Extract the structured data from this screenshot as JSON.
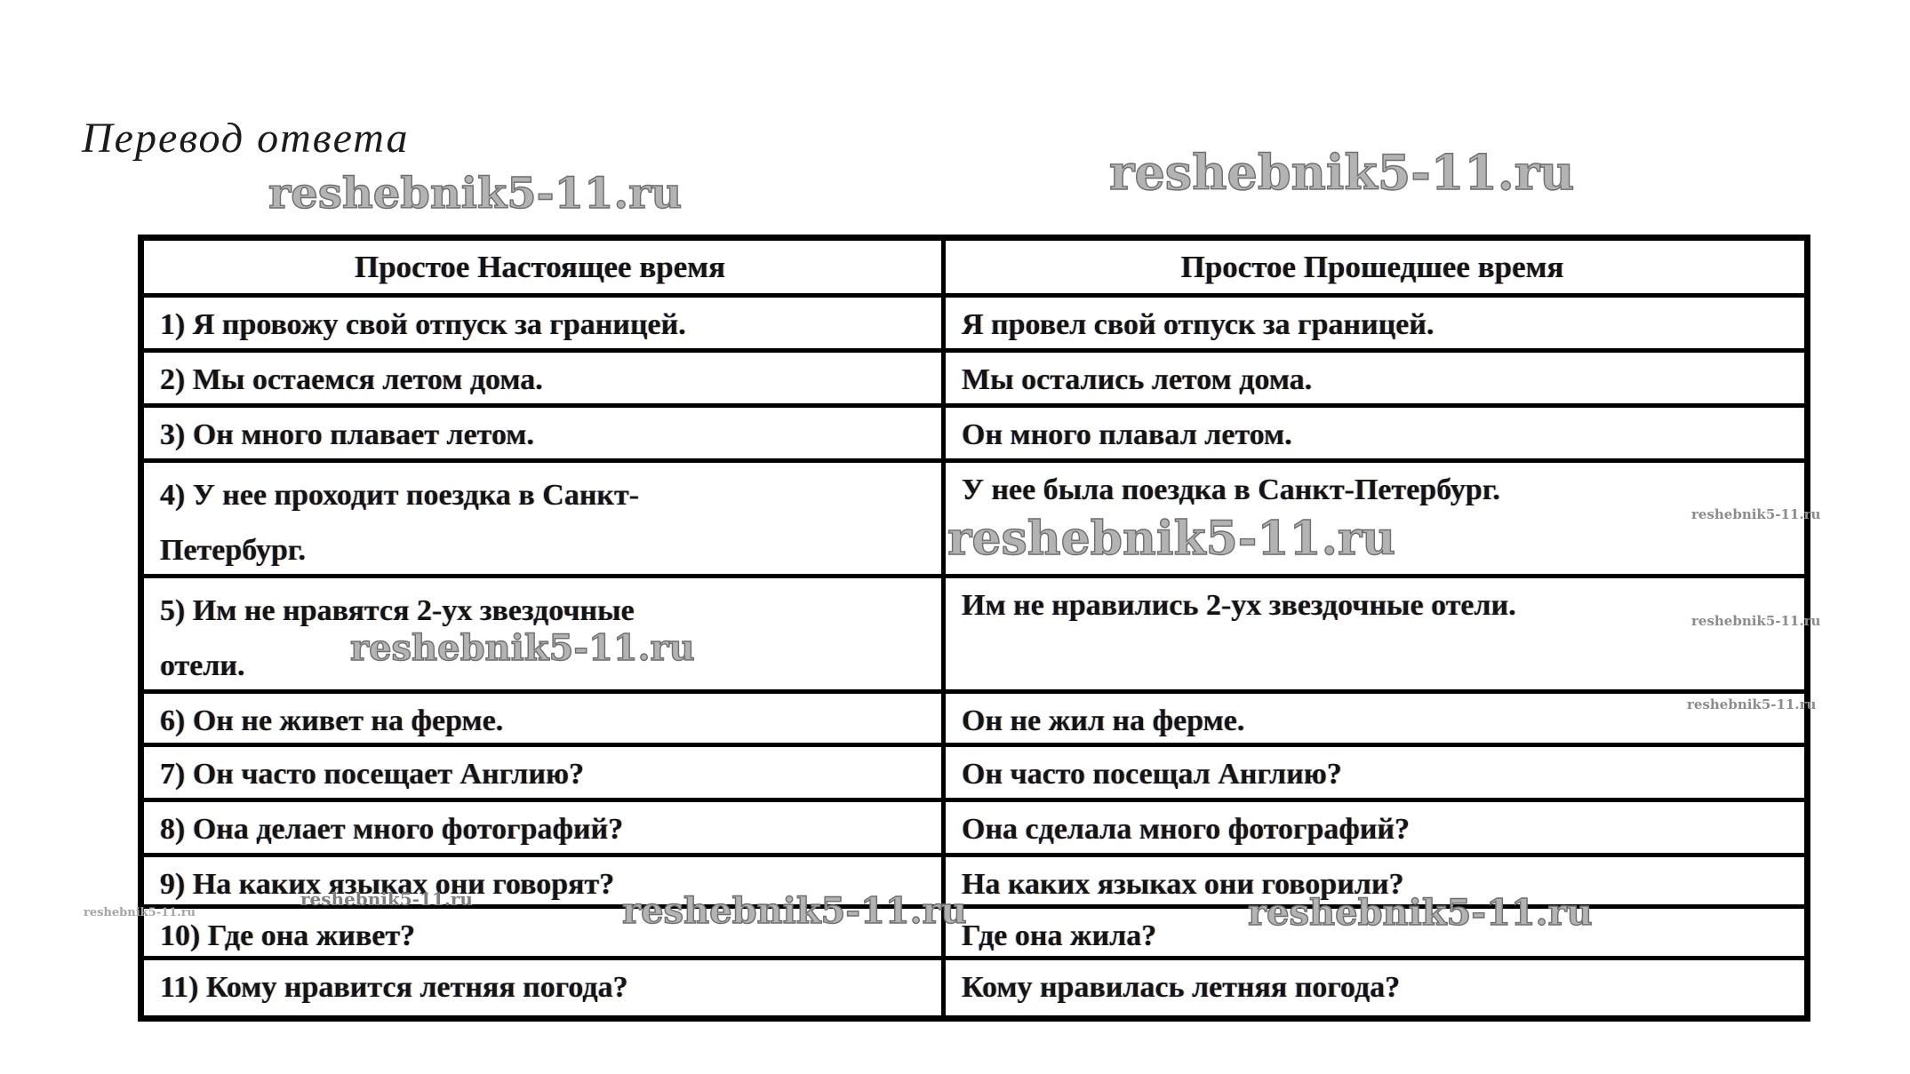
{
  "page": {
    "title": "Перевод ответа"
  },
  "watermark": {
    "text": "reshebnik5-11.ru"
  },
  "table": {
    "headers": {
      "present": "Простое Настоящее время",
      "past": "Простое Прошедшее время"
    },
    "rows": [
      {
        "present": "1) Я провожу свой отпуск за границей.",
        "past": "Я провел свой отпуск за границей."
      },
      {
        "present": "2) Мы остаемся летом дома.",
        "past": "Мы остались летом дома."
      },
      {
        "present": "3) Он много плавает летом.",
        "past": "Он много плавал летом."
      },
      {
        "present": "4) У нее проходит поездка в Санкт-\nПетербург.",
        "past": "У нее была поездка в Санкт-Петербург."
      },
      {
        "present": "5) Им не нравятся 2-ух звездочные\nотели.",
        "past": "Им не нравились 2-ух звездочные отели."
      },
      {
        "present": "6) Он не живет на ферме.",
        "past": "Он не жил на ферме."
      },
      {
        "present": "7) Он часто посещает Англию?",
        "past": "Он часто посещал Англию?"
      },
      {
        "present": "8) Она делает много фотографий?",
        "past": "Она сделала много фотографий?"
      },
      {
        "present": "9) На каких языках они говорят?",
        "past": "На каких языках они говорили?"
      },
      {
        "present": "10) Где она живет?",
        "past": "Где она жила?"
      },
      {
        "present": "11) Кому нравится летняя погода?",
        "past": "Кому нравилась летняя погода?"
      }
    ]
  }
}
